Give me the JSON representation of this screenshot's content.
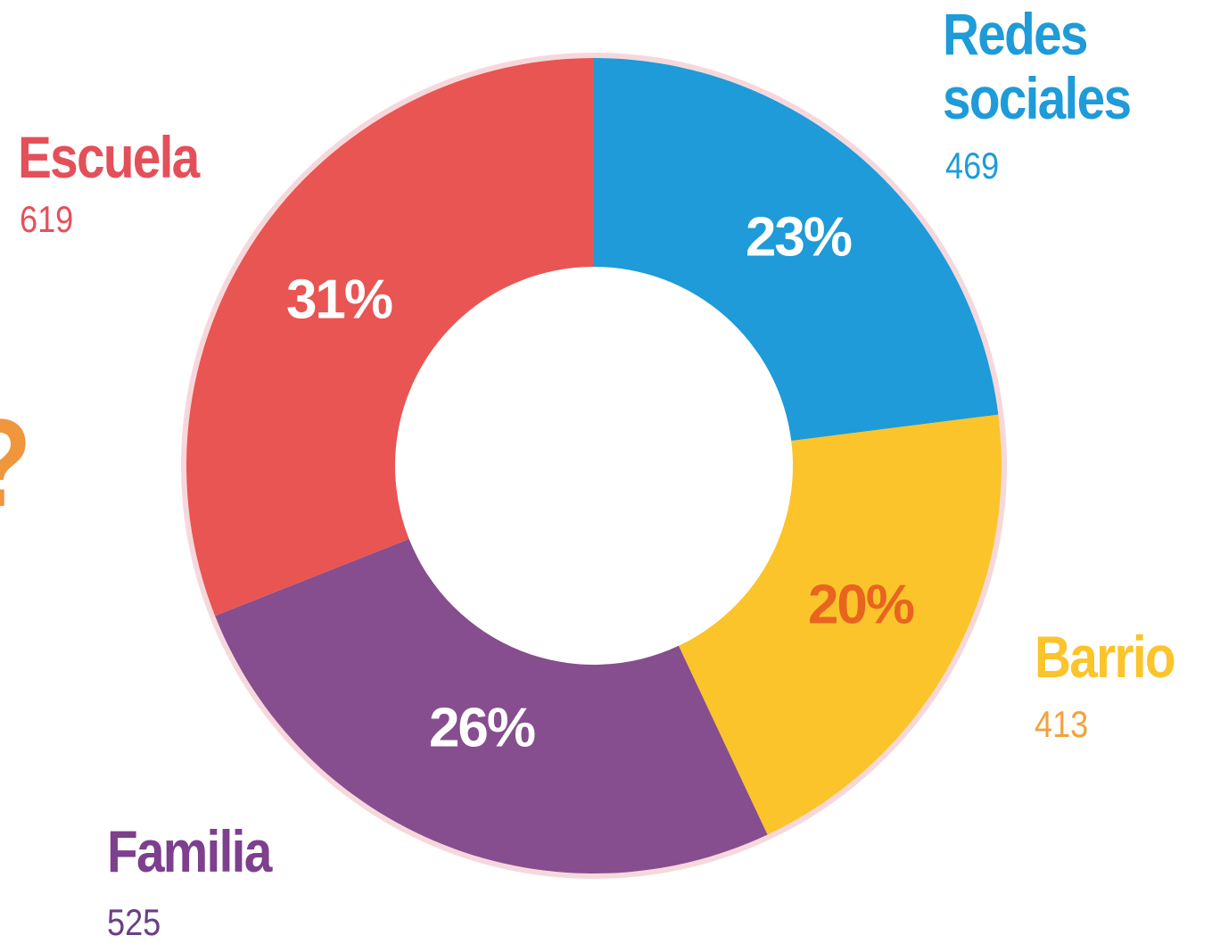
{
  "chart_data": {
    "type": "donut",
    "categories": [
      "Redes sociales",
      "Barrio",
      "Familia",
      "Escuela"
    ],
    "values": [
      23,
      20,
      26,
      31
    ],
    "value_labels": [
      "23%",
      "20%",
      "26%",
      "31%"
    ],
    "counts": [
      469,
      413,
      525,
      619
    ],
    "colors": [
      "#1e9bd8",
      "#fbc42b",
      "#864e8e",
      "#e85552"
    ],
    "label_colors": [
      "#1e9bd8",
      "#fbc42b",
      "#7d3f8e",
      "#e4505a"
    ],
    "count_colors": [
      "#1e9bd8",
      "#f3a23a",
      "#6a3f86",
      "#e4505a"
    ],
    "value_label_colors": [
      "#ffffff",
      "#e8641f",
      "#ffffff",
      "#ffffff"
    ],
    "annotation": "?"
  }
}
